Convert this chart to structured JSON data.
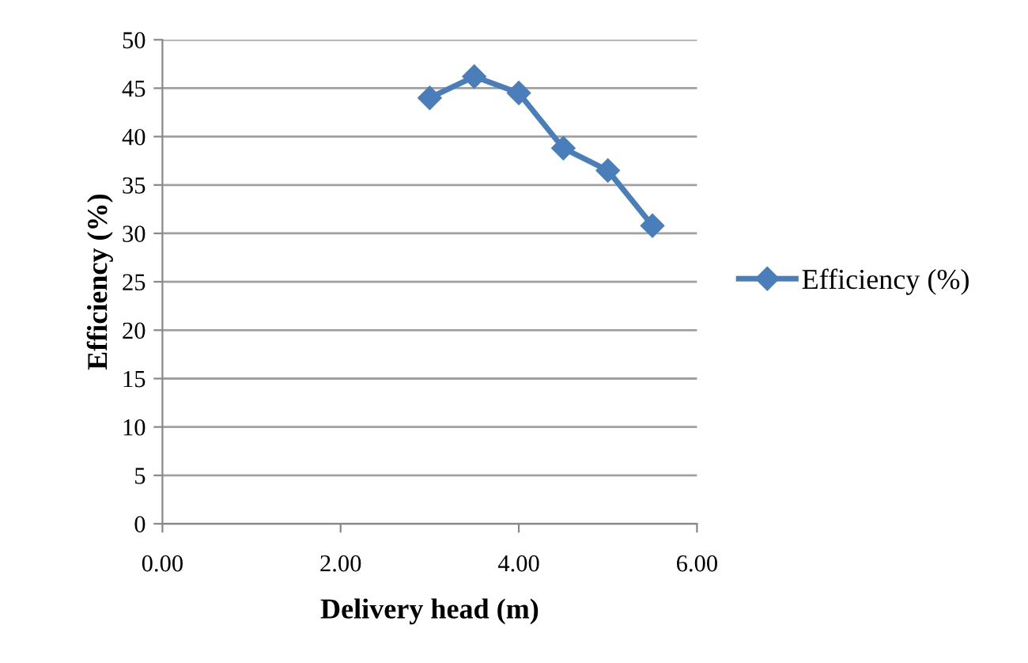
{
  "chart_data": {
    "type": "line",
    "xlabel": "Delivery head (m)",
    "ylabel": "Efficiency (%)",
    "x": [
      3.0,
      3.5,
      4.0,
      4.5,
      5.0,
      5.5
    ],
    "series": [
      {
        "name": "Efficiency (%)",
        "color": "#4a7ebb",
        "values": [
          44.0,
          46.2,
          44.5,
          38.8,
          36.5,
          30.8
        ]
      }
    ],
    "xlim": [
      0,
      6
    ],
    "xticks": [
      {
        "value": 0,
        "label": "0.00"
      },
      {
        "value": 2,
        "label": "2.00"
      },
      {
        "value": 4,
        "label": "4.00"
      },
      {
        "value": 6,
        "label": "6.00"
      }
    ],
    "ylim": [
      0,
      50
    ],
    "yticks": [
      0,
      5,
      10,
      15,
      20,
      25,
      30,
      35,
      40,
      45,
      50
    ],
    "grid": "y",
    "legend": "right",
    "marker": "diamond",
    "line_style": "solid"
  }
}
